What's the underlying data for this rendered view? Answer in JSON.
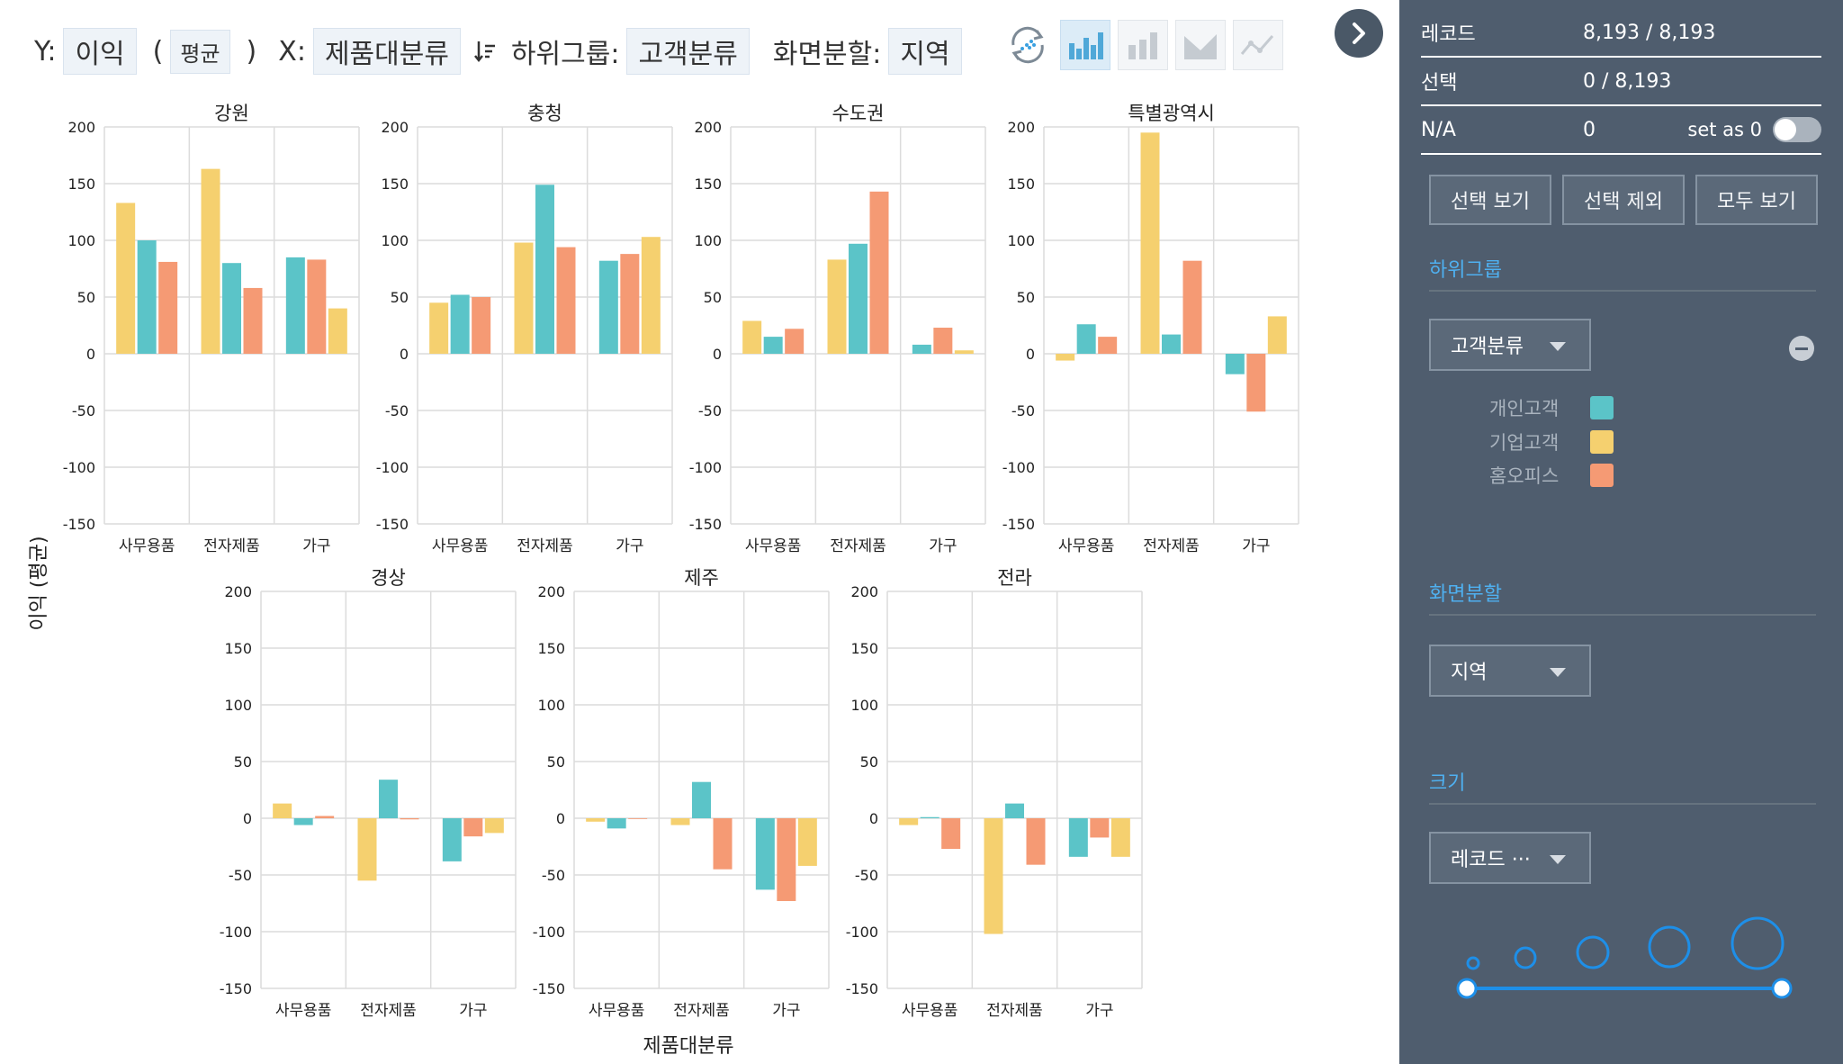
{
  "toolbar": {
    "y_label": "Y:",
    "y_value": "이익",
    "agg_open": "(",
    "agg_value": "평균",
    "agg_close": ")",
    "x_label": "X:",
    "x_value": "제품대분류",
    "subgroup_label": "하위그룹:",
    "subgroup_value": "고객분류",
    "split_label": "화면분할:",
    "split_value": "지역"
  },
  "chart_buttons": [
    {
      "icon": "refresh-scatter-icon"
    },
    {
      "icon": "bar-chart-icon",
      "active": true
    },
    {
      "icon": "bar-chart-gray-icon"
    },
    {
      "icon": "area-chart-icon"
    },
    {
      "icon": "line-chart-icon"
    }
  ],
  "sidebar": {
    "records_label": "레코드",
    "records_value": "8,193 / 8,193",
    "selected_label": "선택",
    "selected_value": "0 / 8,193",
    "na_label": "N/A",
    "na_value": "0",
    "na_set_label": "set as 0",
    "btn_show_selected": "선택 보기",
    "btn_exclude_selected": "선택 제외",
    "btn_show_all": "모두 보기",
    "subgroup_title": "하위그룹",
    "subgroup_dropdown": "고객분류",
    "legend": [
      {
        "name": "개인고객",
        "color": "#5bc4c8"
      },
      {
        "name": "기업고객",
        "color": "#f5d06f"
      },
      {
        "name": "홈오피스",
        "color": "#f59a74"
      }
    ],
    "split_title": "화면분할",
    "split_dropdown": "지역",
    "size_title": "크기",
    "size_dropdown": "레코드 ···"
  },
  "chart_data": {
    "type": "bar",
    "ylabel": "이익 (평균)",
    "xlabel": "제품대분류",
    "ylim": [
      -150,
      200
    ],
    "yticks": [
      200,
      150,
      100,
      50,
      0,
      -50,
      -100,
      -150
    ],
    "categories": [
      "사무용품",
      "전자제품",
      "가구"
    ],
    "colors": {
      "개인고객": "#5bc4c8",
      "기업고객": "#f5d06f",
      "홈오피스": "#f59a74"
    },
    "panels": [
      {
        "title": "강원",
        "groups": [
          [
            [
              "기업고객",
              133
            ],
            [
              "개인고객",
              100
            ],
            [
              "홈오피스",
              81
            ]
          ],
          [
            [
              "기업고객",
              163
            ],
            [
              "개인고객",
              80
            ],
            [
              "홈오피스",
              58
            ]
          ],
          [
            [
              "개인고객",
              85
            ],
            [
              "홈오피스",
              83
            ],
            [
              "기업고객",
              40
            ]
          ]
        ]
      },
      {
        "title": "충청",
        "groups": [
          [
            [
              "기업고객",
              45
            ],
            [
              "개인고객",
              52
            ],
            [
              "홈오피스",
              50
            ]
          ],
          [
            [
              "기업고객",
              98
            ],
            [
              "개인고객",
              149
            ],
            [
              "홈오피스",
              94
            ]
          ],
          [
            [
              "개인고객",
              82
            ],
            [
              "홈오피스",
              88
            ],
            [
              "기업고객",
              103
            ]
          ]
        ]
      },
      {
        "title": "수도권",
        "groups": [
          [
            [
              "기업고객",
              29
            ],
            [
              "개인고객",
              15
            ],
            [
              "홈오피스",
              22
            ]
          ],
          [
            [
              "기업고객",
              83
            ],
            [
              "개인고객",
              97
            ],
            [
              "홈오피스",
              143
            ]
          ],
          [
            [
              "개인고객",
              8
            ],
            [
              "홈오피스",
              23
            ],
            [
              "기업고객",
              3
            ]
          ]
        ]
      },
      {
        "title": "특별광역시",
        "groups": [
          [
            [
              "기업고객",
              -6
            ],
            [
              "개인고객",
              26
            ],
            [
              "홈오피스",
              15
            ]
          ],
          [
            [
              "기업고객",
              195
            ],
            [
              "개인고객",
              17
            ],
            [
              "홈오피스",
              82
            ]
          ],
          [
            [
              "개인고객",
              -18
            ],
            [
              "홈오피스",
              -51
            ],
            [
              "기업고객",
              33
            ]
          ]
        ]
      },
      {
        "title": "경상",
        "groups": [
          [
            [
              "기업고객",
              13
            ],
            [
              "개인고객",
              -6
            ],
            [
              "홈오피스",
              2
            ]
          ],
          [
            [
              "기업고객",
              -55
            ],
            [
              "개인고객",
              34
            ],
            [
              "홈오피스",
              -1
            ]
          ],
          [
            [
              "개인고객",
              -38
            ],
            [
              "홈오피스",
              -16
            ],
            [
              "기업고객",
              -13
            ]
          ]
        ]
      },
      {
        "title": "제주",
        "groups": [
          [
            [
              "기업고객",
              -3
            ],
            [
              "개인고객",
              -9
            ],
            [
              "홈오피스",
              0
            ]
          ],
          [
            [
              "기업고객",
              -6
            ],
            [
              "개인고객",
              32
            ],
            [
              "홈오피스",
              -45
            ]
          ],
          [
            [
              "개인고객",
              -63
            ],
            [
              "홈오피스",
              -73
            ],
            [
              "기업고객",
              -42
            ]
          ]
        ]
      },
      {
        "title": "전라",
        "groups": [
          [
            [
              "기업고객",
              -6
            ],
            [
              "개인고객",
              1
            ],
            [
              "홈오피스",
              -27
            ]
          ],
          [
            [
              "기업고객",
              -102
            ],
            [
              "개인고객",
              13
            ],
            [
              "홈오피스",
              -41
            ]
          ],
          [
            [
              "개인고객",
              -34
            ],
            [
              "홈오피스",
              -17
            ],
            [
              "기업고객",
              -34
            ]
          ]
        ]
      }
    ]
  }
}
